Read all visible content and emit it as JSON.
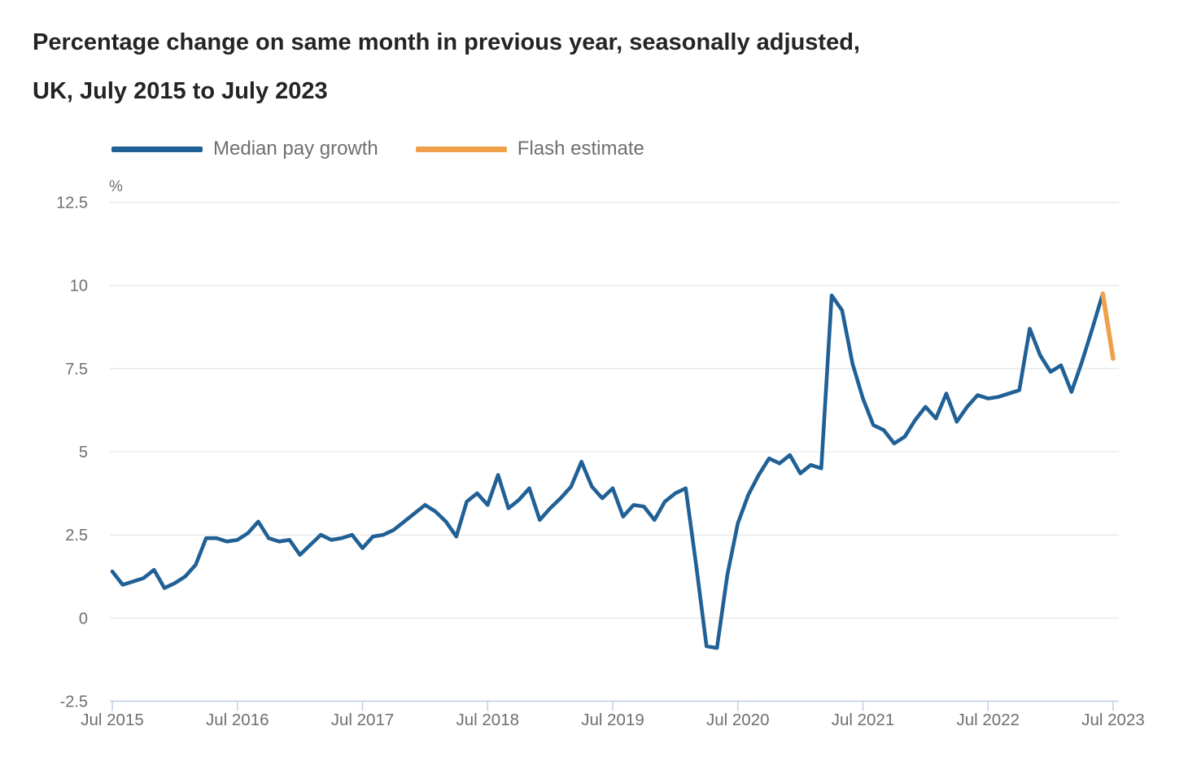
{
  "title": {
    "line1": "Percentage change on same month in previous year, seasonally adjusted,",
    "line2": "UK, July 2015 to July 2023"
  },
  "legend": [
    {
      "label": "Median pay growth",
      "color": "#206095"
    },
    {
      "label": "Flash estimate",
      "color": "#f0a04b"
    }
  ],
  "colors": {
    "gridline": "#e3e3e3",
    "axis_line": "#c3d0e7",
    "tick_mark": "#c3d0e7",
    "axis_text": "#6e6f71",
    "title_text": "#242424"
  },
  "chart_data": {
    "type": "line",
    "title": "Percentage change on same month in previous year, seasonally adjusted, UK, July 2015 to July 2023",
    "unit_label": "%",
    "xlabel": "",
    "ylabel": "%",
    "ylim": [
      -2.5,
      12.5
    ],
    "y_ticks": [
      12.5,
      10,
      7.5,
      5,
      2.5,
      0,
      -2.5
    ],
    "grid": true,
    "legend_position": "top",
    "x_tick_labels": [
      "Jul 2015",
      "Jul 2016",
      "Jul 2017",
      "Jul 2018",
      "Jul 2019",
      "Jul 2020",
      "Jul 2021",
      "Jul 2022",
      "Jul 2023"
    ],
    "x_tick_indices": [
      0,
      12,
      24,
      36,
      48,
      60,
      72,
      84,
      96
    ],
    "months": [
      "2015-07",
      "2015-08",
      "2015-09",
      "2015-10",
      "2015-11",
      "2015-12",
      "2016-01",
      "2016-02",
      "2016-03",
      "2016-04",
      "2016-05",
      "2016-06",
      "2016-07",
      "2016-08",
      "2016-09",
      "2016-10",
      "2016-11",
      "2016-12",
      "2017-01",
      "2017-02",
      "2017-03",
      "2017-04",
      "2017-05",
      "2017-06",
      "2017-07",
      "2017-08",
      "2017-09",
      "2017-10",
      "2017-11",
      "2017-12",
      "2018-01",
      "2018-02",
      "2018-03",
      "2018-04",
      "2018-05",
      "2018-06",
      "2018-07",
      "2018-08",
      "2018-09",
      "2018-10",
      "2018-11",
      "2018-12",
      "2019-01",
      "2019-02",
      "2019-03",
      "2019-04",
      "2019-05",
      "2019-06",
      "2019-07",
      "2019-08",
      "2019-09",
      "2019-10",
      "2019-11",
      "2019-12",
      "2020-01",
      "2020-02",
      "2020-03",
      "2020-04",
      "2020-05",
      "2020-06",
      "2020-07",
      "2020-08",
      "2020-09",
      "2020-10",
      "2020-11",
      "2020-12",
      "2021-01",
      "2021-02",
      "2021-03",
      "2021-04",
      "2021-05",
      "2021-06",
      "2021-07",
      "2021-08",
      "2021-09",
      "2021-10",
      "2021-11",
      "2021-12",
      "2022-01",
      "2022-02",
      "2022-03",
      "2022-04",
      "2022-05",
      "2022-06",
      "2022-07",
      "2022-08",
      "2022-09",
      "2022-10",
      "2022-11",
      "2022-12",
      "2023-01",
      "2023-02",
      "2023-03",
      "2023-04",
      "2023-05",
      "2023-06",
      "2023-07"
    ],
    "series": [
      {
        "name": "Median pay growth",
        "color": "#206095",
        "values": [
          1.4,
          1.0,
          1.1,
          1.2,
          1.45,
          0.9,
          1.05,
          1.25,
          1.6,
          2.4,
          2.4,
          2.3,
          2.35,
          2.55,
          2.9,
          2.4,
          2.3,
          2.35,
          1.9,
          2.2,
          2.5,
          2.35,
          2.4,
          2.5,
          2.1,
          2.45,
          2.5,
          2.65,
          2.9,
          3.15,
          3.4,
          3.2,
          2.9,
          2.45,
          3.5,
          3.75,
          3.4,
          4.3,
          3.3,
          3.55,
          3.9,
          2.95,
          3.3,
          3.6,
          3.95,
          4.7,
          3.95,
          3.6,
          3.9,
          3.05,
          3.4,
          3.35,
          2.95,
          3.5,
          3.75,
          3.9,
          1.6,
          -0.85,
          -0.9,
          1.3,
          2.85,
          3.7,
          4.3,
          4.8,
          4.65,
          4.9,
          4.35,
          4.6,
          4.5,
          9.7,
          9.25,
          7.65,
          6.6,
          5.8,
          5.65,
          5.25,
          5.45,
          5.95,
          6.35,
          6.0,
          6.75,
          5.9,
          6.35,
          6.7,
          6.6,
          6.65,
          6.75,
          6.85,
          8.7,
          7.9,
          7.4,
          7.6,
          6.8,
          7.7,
          8.7,
          9.75,
          null
        ]
      },
      {
        "name": "Flash estimate",
        "color": "#f0a04b",
        "points": [
          {
            "month": "2023-06",
            "value": 9.75
          },
          {
            "month": "2023-07",
            "value": 7.8
          }
        ]
      }
    ]
  }
}
